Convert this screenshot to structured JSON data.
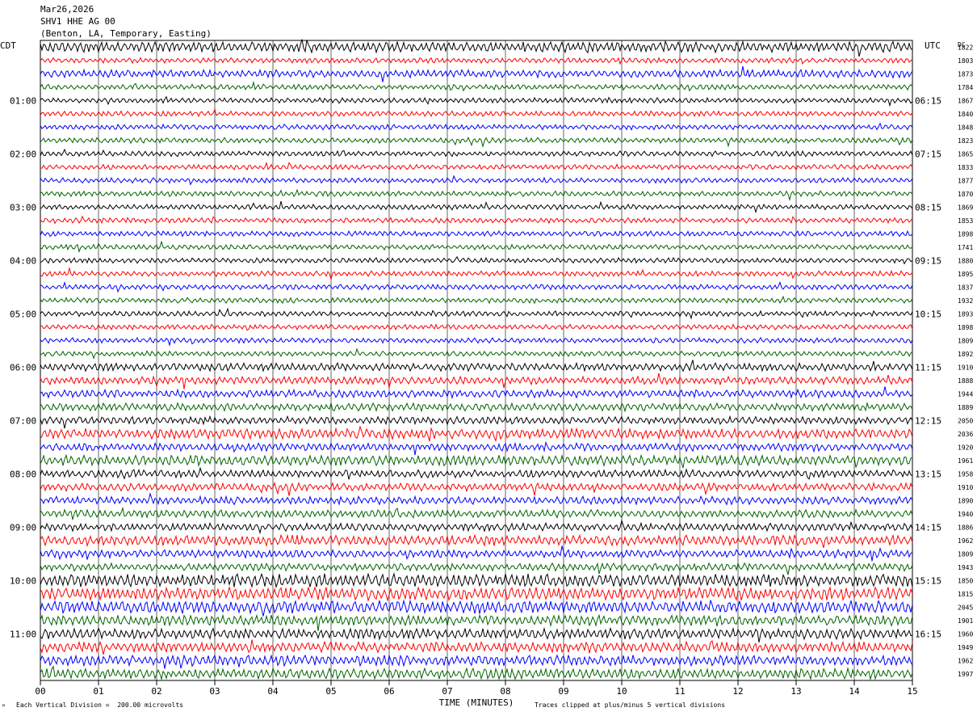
{
  "header": {
    "date": "Mar26,2026",
    "station": "SHV1 HHE AG 00",
    "location": "(Benton, LA, Temporary, Easting)"
  },
  "footer": {
    "scale_note": "Each Vertical Division =  200.00 microvolts",
    "clip_note": "Traces clipped at plus/minus 5 vertical divisions",
    "corner_mark": "ᴹ"
  },
  "colors": {
    "trace_cycle": [
      "#000000",
      "#ff0000",
      "#0000ff",
      "#006400"
    ],
    "grid": "#000000"
  },
  "chart_data": {
    "type": "line",
    "subtype": "helicorder",
    "title": "",
    "xlabel": "TIME (MINUTES)",
    "x_ticks": [
      "00",
      "01",
      "02",
      "03",
      "04",
      "05",
      "06",
      "07",
      "08",
      "09",
      "10",
      "11",
      "12",
      "13",
      "14",
      "15"
    ],
    "xlim": [
      0,
      15
    ],
    "left_axis_label": "CDT",
    "right_axis_label": "UTC",
    "dc_label": "DC",
    "left_hour_labels": [
      {
        "row": 4,
        "label": "01:00"
      },
      {
        "row": 8,
        "label": "02:00"
      },
      {
        "row": 12,
        "label": "03:00"
      },
      {
        "row": 16,
        "label": "04:00"
      },
      {
        "row": 20,
        "label": "05:00"
      },
      {
        "row": 24,
        "label": "06:00"
      },
      {
        "row": 28,
        "label": "07:00"
      },
      {
        "row": 32,
        "label": "08:00"
      },
      {
        "row": 36,
        "label": "09:00"
      },
      {
        "row": 40,
        "label": "10:00"
      },
      {
        "row": 44,
        "label": "11:00"
      }
    ],
    "right_hour_labels": [
      {
        "row": 4,
        "label": "06:15"
      },
      {
        "row": 8,
        "label": "07:15"
      },
      {
        "row": 12,
        "label": "08:15"
      },
      {
        "row": 16,
        "label": "09:15"
      },
      {
        "row": 20,
        "label": "10:15"
      },
      {
        "row": 24,
        "label": "11:15"
      },
      {
        "row": 28,
        "label": "12:15"
      },
      {
        "row": 32,
        "label": "13:15"
      },
      {
        "row": 36,
        "label": "14:15"
      },
      {
        "row": 40,
        "label": "15:15"
      },
      {
        "row": 44,
        "label": "16:15"
      }
    ],
    "dc_values": [
      "1822",
      "1803",
      "1873",
      "1784",
      "1867",
      "1840",
      "1848",
      "1823",
      "1865",
      "1833",
      "1877",
      "1870",
      "1869",
      "1853",
      "1898",
      "1741",
      "1880",
      "1895",
      "1837",
      "1932",
      "1893",
      "1898",
      "1809",
      "1892",
      "1910",
      "1888",
      "1944",
      "1889",
      "2050",
      "2036",
      "1920",
      "1961",
      "1958",
      "1910",
      "1890",
      "1940",
      "1886",
      "1962",
      "1809",
      "1943",
      "1850",
      "1815",
      "2045",
      "1901",
      "1960",
      "1949",
      "1962",
      "1997"
    ],
    "activity_levels": [
      3,
      1,
      2,
      1,
      1,
      1,
      1,
      1,
      1,
      1,
      1,
      1,
      1,
      1,
      1,
      1,
      1,
      1,
      1,
      1,
      1,
      1,
      1,
      1,
      2,
      2,
      2,
      2,
      2,
      3,
      2,
      3,
      2,
      2,
      2,
      2,
      2,
      3,
      2,
      2,
      4,
      4,
      4,
      3,
      3,
      3,
      3,
      3
    ]
  }
}
